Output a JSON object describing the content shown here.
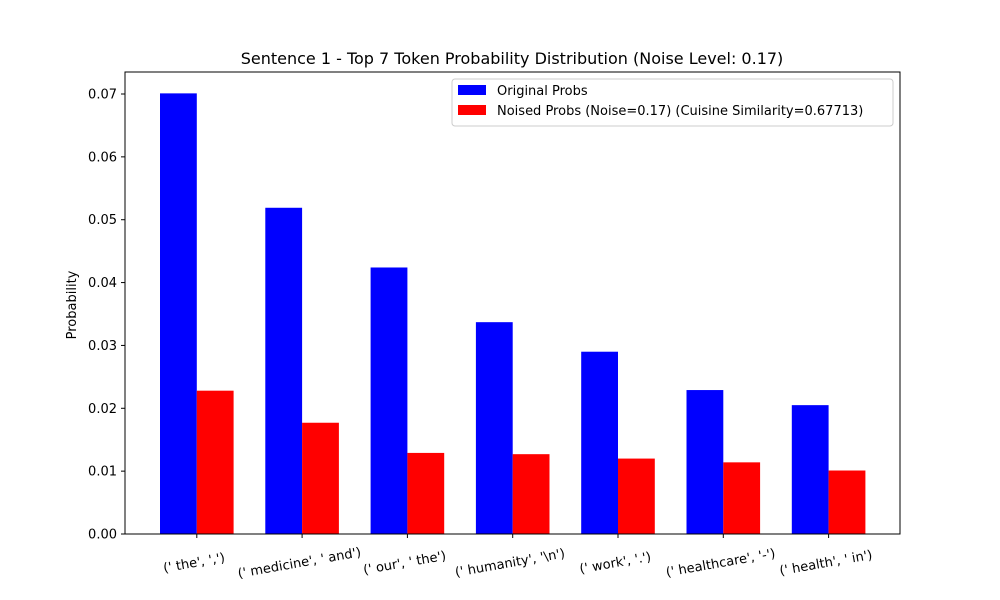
{
  "chart_data": {
    "type": "bar",
    "title": "Sentence 1 - Top 7 Token Probability Distribution (Noise Level: 0.17)",
    "xlabel": "",
    "ylabel": "Probability",
    "ylim": [
      0,
      0.0735
    ],
    "yticks": [
      "0.00",
      "0.01",
      "0.02",
      "0.03",
      "0.04",
      "0.05",
      "0.06",
      "0.07"
    ],
    "ytick_values": [
      0,
      0.01,
      0.02,
      0.03,
      0.04,
      0.05,
      0.06,
      0.07
    ],
    "categories": [
      "(' the', ',')",
      "(' medicine', ' and')",
      "(' our', ' the')",
      "(' humanity', '\\n')",
      "(' work', '.')",
      "(' healthcare', '-')",
      "(' health', ' in')"
    ],
    "series": [
      {
        "name": "Original Probs",
        "color": "#0000ff",
        "values": [
          0.0701,
          0.0519,
          0.0424,
          0.0337,
          0.029,
          0.0229,
          0.0205
        ]
      },
      {
        "name": "Noised Probs (Noise=0.17) (Cuisine Similarity=0.67713)",
        "color": "#ff0000",
        "values": [
          0.0228,
          0.0177,
          0.0129,
          0.0127,
          0.012,
          0.0114,
          0.0101
        ]
      }
    ],
    "grid": false,
    "legend_position": "top-right"
  }
}
